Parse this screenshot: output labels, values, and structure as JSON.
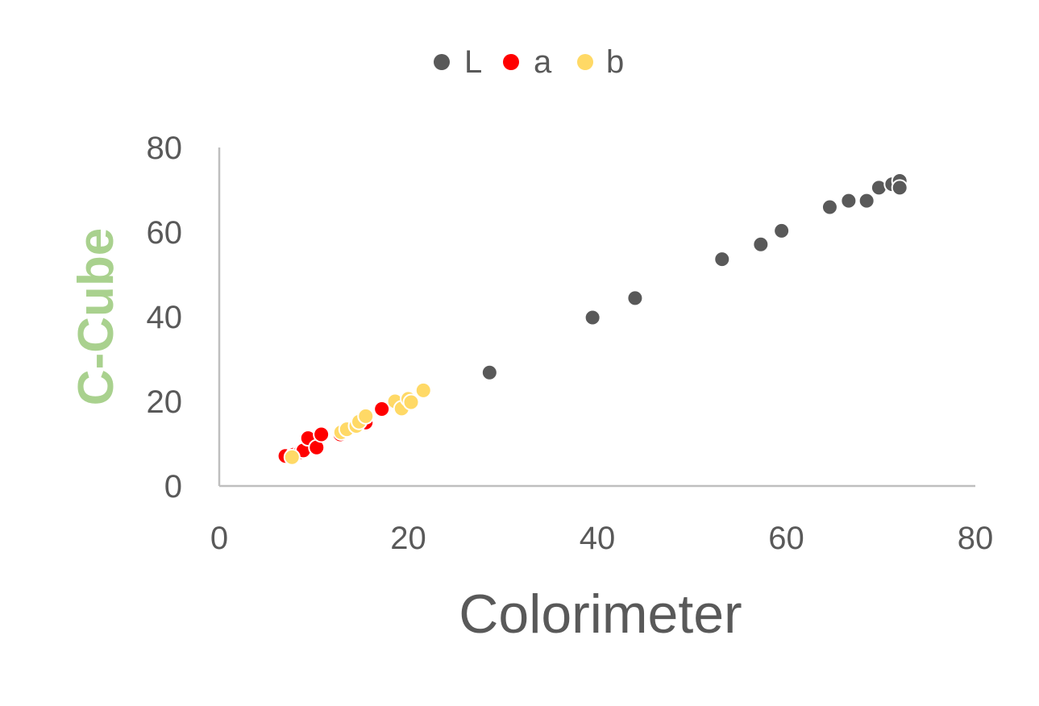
{
  "chart_data": {
    "type": "scatter",
    "title": "",
    "xlabel": "Colorimeter",
    "ylabel": "C-Cube",
    "xlim": [
      0,
      80
    ],
    "ylim": [
      0,
      80
    ],
    "x_ticks": [
      "0",
      "20",
      "40",
      "60",
      "80"
    ],
    "y_ticks": [
      "0",
      "20",
      "40",
      "60",
      "80"
    ],
    "grid": false,
    "legend_position": "top",
    "colors": {
      "axis": "#bfbfbf",
      "tick_text": "#595959",
      "xlabel": "#595959",
      "ylabel": "#a9d18e",
      "marker_edge": "#ffffff"
    },
    "series": [
      {
        "name": "L",
        "color": "#595959",
        "points": [
          [
            28.6,
            26.8
          ],
          [
            39.5,
            39.8
          ],
          [
            44.0,
            44.4
          ],
          [
            53.2,
            53.6
          ],
          [
            57.3,
            57.1
          ],
          [
            59.5,
            60.3
          ],
          [
            64.6,
            65.9
          ],
          [
            66.6,
            67.4
          ],
          [
            68.5,
            67.4
          ],
          [
            69.8,
            70.5
          ],
          [
            71.2,
            71.3
          ],
          [
            72.0,
            72.1
          ],
          [
            72.0,
            70.5
          ]
        ]
      },
      {
        "name": "a",
        "color": "#ff0000",
        "points": [
          [
            7.0,
            7.1
          ],
          [
            7.9,
            7.4
          ],
          [
            8.6,
            8.0
          ],
          [
            8.9,
            8.4
          ],
          [
            9.4,
            11.3
          ],
          [
            10.3,
            9.1
          ],
          [
            10.8,
            12.2
          ],
          [
            12.8,
            12.2
          ],
          [
            15.5,
            15.0
          ],
          [
            17.2,
            18.2
          ]
        ]
      },
      {
        "name": "b",
        "color": "#ffd966",
        "points": [
          [
            7.7,
            6.8
          ],
          [
            12.9,
            12.7
          ],
          [
            13.5,
            13.4
          ],
          [
            14.5,
            14.2
          ],
          [
            14.8,
            15.2
          ],
          [
            15.5,
            16.5
          ],
          [
            18.6,
            20.0
          ],
          [
            19.3,
            18.3
          ],
          [
            20.0,
            20.6
          ],
          [
            20.3,
            19.8
          ],
          [
            21.6,
            22.6
          ]
        ]
      }
    ]
  }
}
